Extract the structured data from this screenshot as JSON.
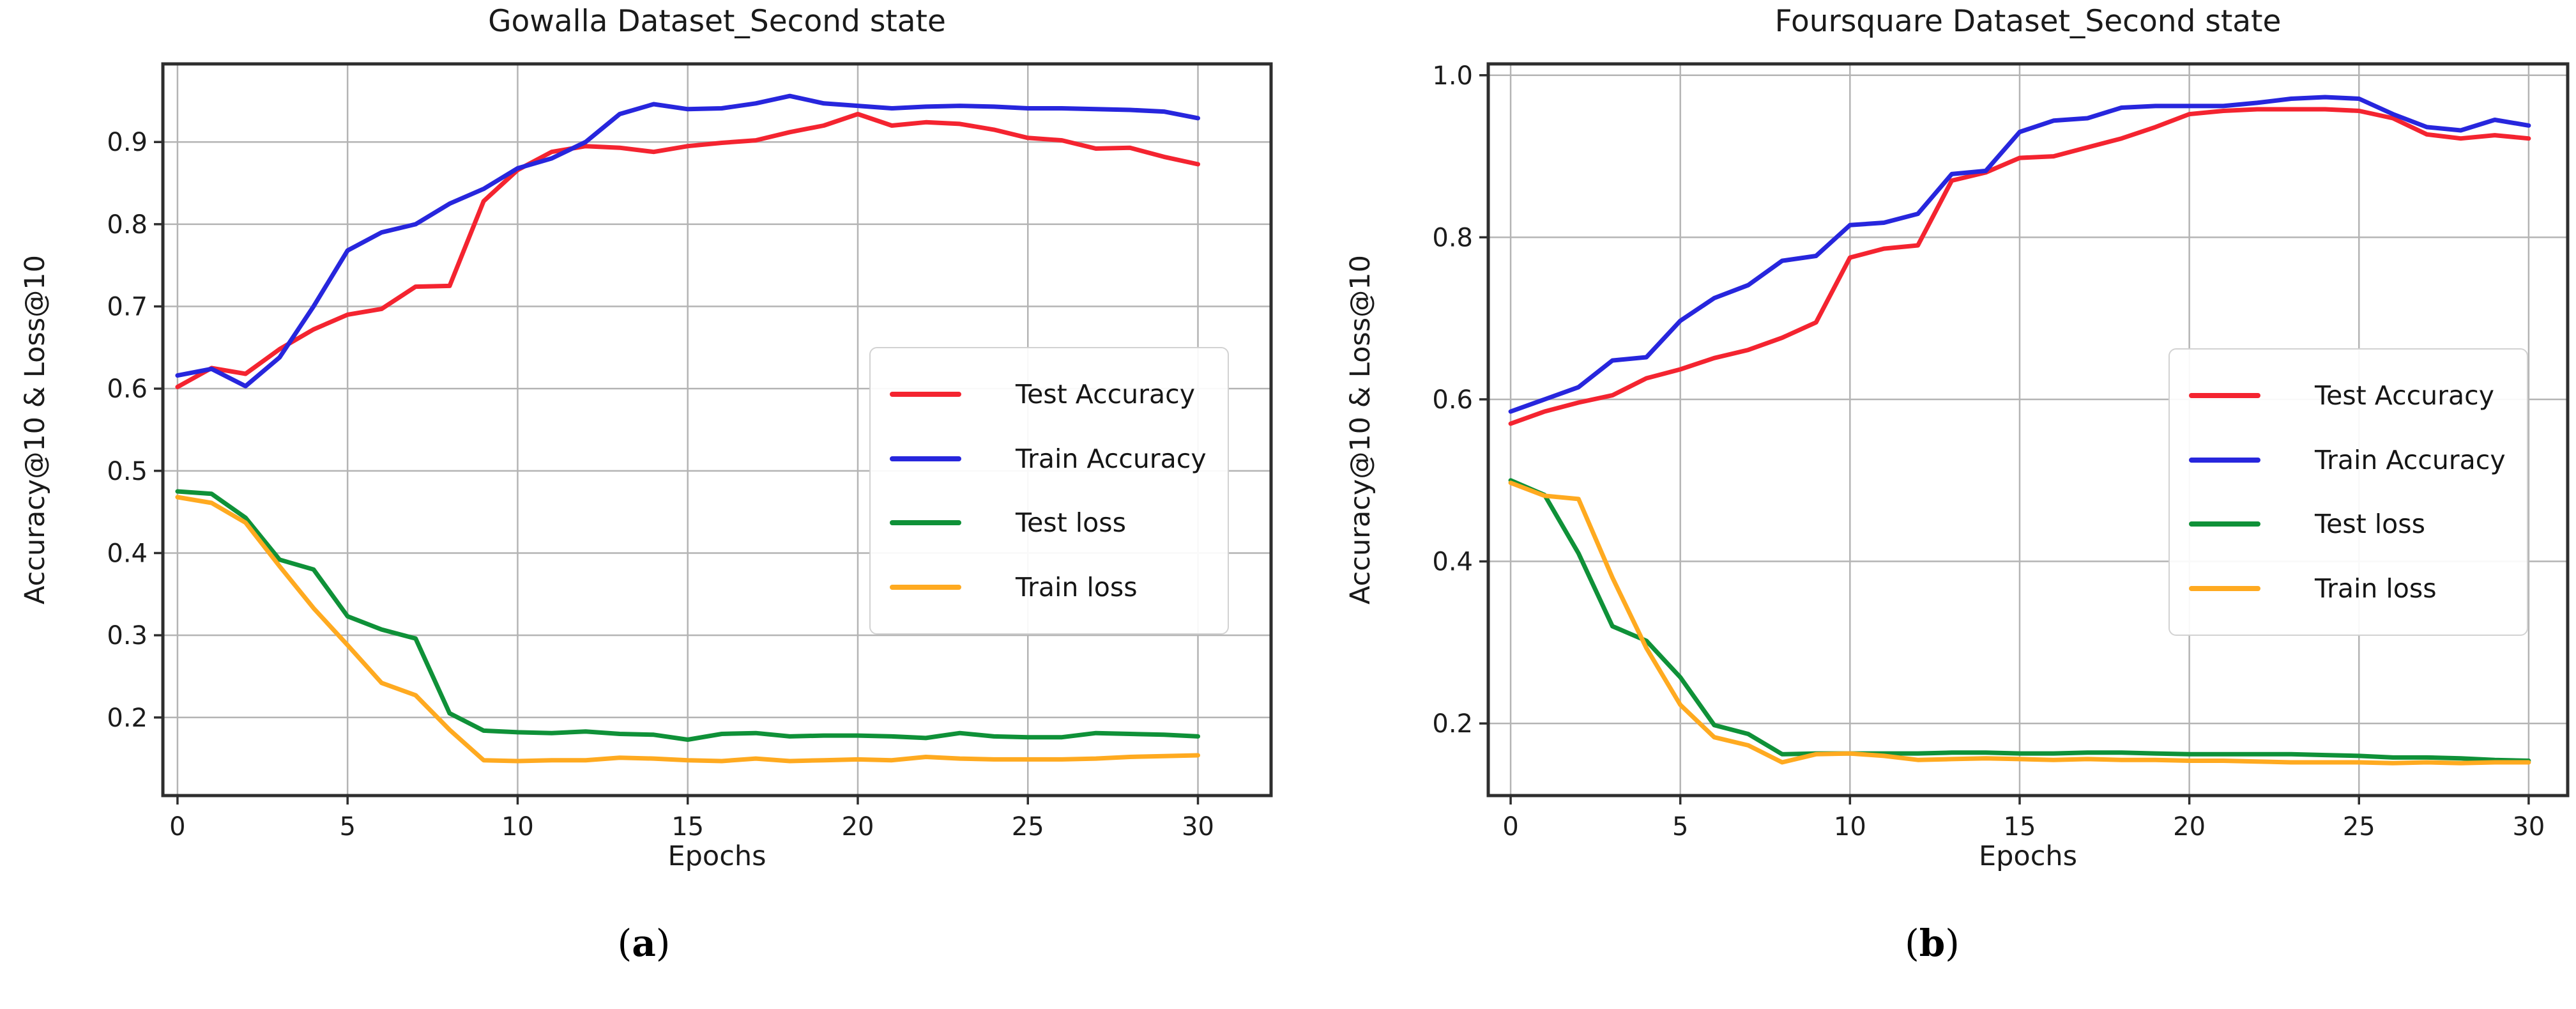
{
  "figure": {
    "captions": {
      "a": {
        "open": "(",
        "letter": "a",
        "close": ")"
      },
      "b": {
        "open": "(",
        "letter": "b",
        "close": ")"
      }
    },
    "colors": {
      "test_accuracy": "#f42430",
      "train_accuracy": "#2726dd",
      "test_loss": "#0f9138",
      "train_loss": "#ffaa20",
      "grid": "#b4b4b4",
      "spine": "#2e2e2e",
      "background": "#ffffff"
    },
    "legend": {
      "items": [
        "Test Accuracy",
        "Train Accuracy",
        "Test loss",
        "Train loss"
      ]
    }
  },
  "chart_data": [
    {
      "type": "line",
      "title": "Gowalla Dataset_Second state",
      "xlabel": "Epochs",
      "ylabel": "Accuracy@10 & Loss@10",
      "grid": true,
      "legend_position": "center-right",
      "x_ticks": [
        0,
        5,
        10,
        15,
        20,
        25,
        30
      ],
      "y_ticks": [
        0.2,
        0.3,
        0.4,
        0.5,
        0.6,
        0.7,
        0.8,
        0.9
      ],
      "xlim": [
        -0.43,
        32.15
      ],
      "ylim": [
        0.105,
        0.995
      ],
      "x": [
        0,
        1,
        2,
        3,
        4,
        5,
        6,
        7,
        8,
        9,
        10,
        11,
        12,
        13,
        14,
        15,
        16,
        17,
        18,
        19,
        20,
        21,
        22,
        23,
        24,
        25,
        26,
        27,
        28,
        29,
        30
      ],
      "series": [
        {
          "name": "Test Accuracy",
          "color": "#f42430",
          "values": [
            0.602,
            0.625,
            0.618,
            0.648,
            0.672,
            0.69,
            0.697,
            0.724,
            0.725,
            0.828,
            0.866,
            0.888,
            0.895,
            0.893,
            0.888,
            0.895,
            0.899,
            0.902,
            0.912,
            0.92,
            0.934,
            0.92,
            0.924,
            0.922,
            0.915,
            0.905,
            0.902,
            0.892,
            0.893,
            0.882,
            0.873
          ]
        },
        {
          "name": "Train Accuracy",
          "color": "#2726dd",
          "values": [
            0.616,
            0.624,
            0.603,
            0.638,
            0.7,
            0.768,
            0.79,
            0.8,
            0.825,
            0.843,
            0.868,
            0.88,
            0.9,
            0.934,
            0.946,
            0.94,
            0.941,
            0.947,
            0.956,
            0.947,
            0.944,
            0.941,
            0.943,
            0.944,
            0.943,
            0.941,
            0.941,
            0.94,
            0.939,
            0.937,
            0.929
          ]
        },
        {
          "name": "Test loss",
          "color": "#0f9138",
          "values": [
            0.475,
            0.472,
            0.443,
            0.392,
            0.38,
            0.323,
            0.307,
            0.296,
            0.205,
            0.184,
            0.182,
            0.181,
            0.183,
            0.18,
            0.179,
            0.173,
            0.18,
            0.181,
            0.177,
            0.178,
            0.178,
            0.177,
            0.175,
            0.181,
            0.177,
            0.176,
            0.176,
            0.181,
            0.18,
            0.179,
            0.177
          ]
        },
        {
          "name": "Train loss",
          "color": "#ffaa20",
          "values": [
            0.468,
            0.461,
            0.437,
            0.384,
            0.333,
            0.288,
            0.242,
            0.227,
            0.185,
            0.148,
            0.147,
            0.148,
            0.148,
            0.151,
            0.15,
            0.148,
            0.147,
            0.15,
            0.147,
            0.148,
            0.149,
            0.148,
            0.152,
            0.15,
            0.149,
            0.149,
            0.149,
            0.15,
            0.152,
            0.153,
            0.154
          ]
        }
      ]
    },
    {
      "type": "line",
      "title": "Foursquare Dataset_Second state",
      "xlabel": "Epochs",
      "ylabel": "Accuracy@10 & Loss@10",
      "grid": true,
      "legend_position": "center-right",
      "x_ticks": [
        0,
        5,
        10,
        15,
        20,
        25,
        30
      ],
      "y_ticks": [
        0.2,
        0.4,
        0.6,
        0.8,
        1.0
      ],
      "xlim": [
        -0.66,
        31.15
      ],
      "ylim": [
        0.111,
        1.014
      ],
      "x": [
        0,
        1,
        2,
        3,
        4,
        5,
        6,
        7,
        8,
        9,
        10,
        11,
        12,
        13,
        14,
        15,
        16,
        17,
        18,
        19,
        20,
        21,
        22,
        23,
        24,
        25,
        26,
        27,
        28,
        29,
        30
      ],
      "series": [
        {
          "name": "Test Accuracy",
          "color": "#f42430",
          "values": [
            0.57,
            0.585,
            0.596,
            0.605,
            0.626,
            0.637,
            0.651,
            0.661,
            0.676,
            0.695,
            0.775,
            0.786,
            0.79,
            0.87,
            0.88,
            0.898,
            0.9,
            0.911,
            0.922,
            0.936,
            0.952,
            0.956,
            0.958,
            0.958,
            0.958,
            0.956,
            0.947,
            0.927,
            0.922,
            0.926,
            0.922
          ]
        },
        {
          "name": "Train Accuracy",
          "color": "#2726dd",
          "values": [
            0.585,
            0.6,
            0.615,
            0.648,
            0.652,
            0.697,
            0.725,
            0.741,
            0.771,
            0.777,
            0.815,
            0.818,
            0.829,
            0.878,
            0.882,
            0.93,
            0.944,
            0.947,
            0.96,
            0.962,
            0.962,
            0.962,
            0.966,
            0.971,
            0.973,
            0.971,
            0.952,
            0.936,
            0.932,
            0.945,
            0.938
          ]
        },
        {
          "name": "Test loss",
          "color": "#0f9138",
          "values": [
            0.5,
            0.482,
            0.41,
            0.32,
            0.302,
            0.257,
            0.198,
            0.187,
            0.162,
            0.163,
            0.163,
            0.163,
            0.163,
            0.164,
            0.164,
            0.163,
            0.163,
            0.164,
            0.164,
            0.163,
            0.162,
            0.162,
            0.162,
            0.162,
            0.161,
            0.16,
            0.158,
            0.158,
            0.157,
            0.155,
            0.154
          ]
        },
        {
          "name": "Train loss",
          "color": "#ffaa20",
          "values": [
            0.497,
            0.481,
            0.477,
            0.38,
            0.293,
            0.223,
            0.183,
            0.173,
            0.152,
            0.162,
            0.163,
            0.16,
            0.155,
            0.156,
            0.157,
            0.156,
            0.155,
            0.156,
            0.155,
            0.155,
            0.154,
            0.154,
            0.153,
            0.152,
            0.152,
            0.152,
            0.151,
            0.152,
            0.151,
            0.152,
            0.152
          ]
        }
      ]
    }
  ]
}
